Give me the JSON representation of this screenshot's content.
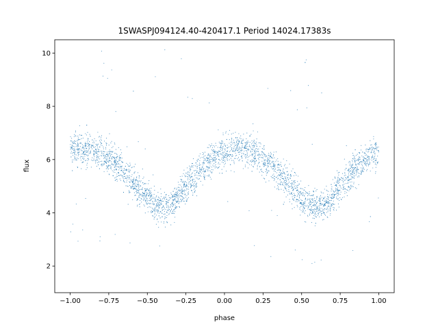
{
  "chart_data": {
    "type": "scatter",
    "title": "1SWASPJ094124.40-420417.1 Period 14024.17383s",
    "xlabel": "phase",
    "ylabel": "flux",
    "xlim": [
      -1.1,
      1.1
    ],
    "ylim": [
      1.0,
      10.5
    ],
    "x_ticks": [
      -1.0,
      -0.75,
      -0.5,
      -0.25,
      0.0,
      0.25,
      0.5,
      0.75,
      1.0
    ],
    "x_tick_labels": [
      "−1.00",
      "−0.75",
      "−0.50",
      "−0.25",
      "0.00",
      "0.25",
      "0.50",
      "0.75",
      "1.00"
    ],
    "y_ticks": [
      2,
      4,
      6,
      8,
      10
    ],
    "y_tick_labels": [
      "2",
      "4",
      "6",
      "8",
      "10"
    ],
    "grid": false,
    "legend": "none",
    "marker_color": "#1f77b4",
    "series": [
      {
        "x_range": [
          -1.0,
          1.0
        ],
        "curve": [
          [
            -1.0,
            6.35
          ],
          [
            -0.9,
            6.4
          ],
          [
            -0.8,
            6.25
          ],
          [
            -0.7,
            5.85
          ],
          [
            -0.6,
            5.2
          ],
          [
            -0.5,
            4.55
          ],
          [
            -0.45,
            4.25
          ],
          [
            -0.4,
            4.2
          ],
          [
            -0.35,
            4.3
          ],
          [
            -0.3,
            4.6
          ],
          [
            -0.2,
            5.3
          ],
          [
            -0.1,
            5.95
          ],
          [
            0.0,
            6.3
          ],
          [
            0.1,
            6.4
          ],
          [
            0.2,
            6.25
          ],
          [
            0.3,
            5.85
          ],
          [
            0.4,
            5.2
          ],
          [
            0.5,
            4.55
          ],
          [
            0.55,
            4.25
          ],
          [
            0.6,
            4.2
          ],
          [
            0.65,
            4.3
          ],
          [
            0.7,
            4.6
          ],
          [
            0.8,
            5.3
          ],
          [
            0.9,
            5.95
          ],
          [
            1.0,
            6.3
          ]
        ],
        "scatter_sd": 0.3
      }
    ]
  }
}
